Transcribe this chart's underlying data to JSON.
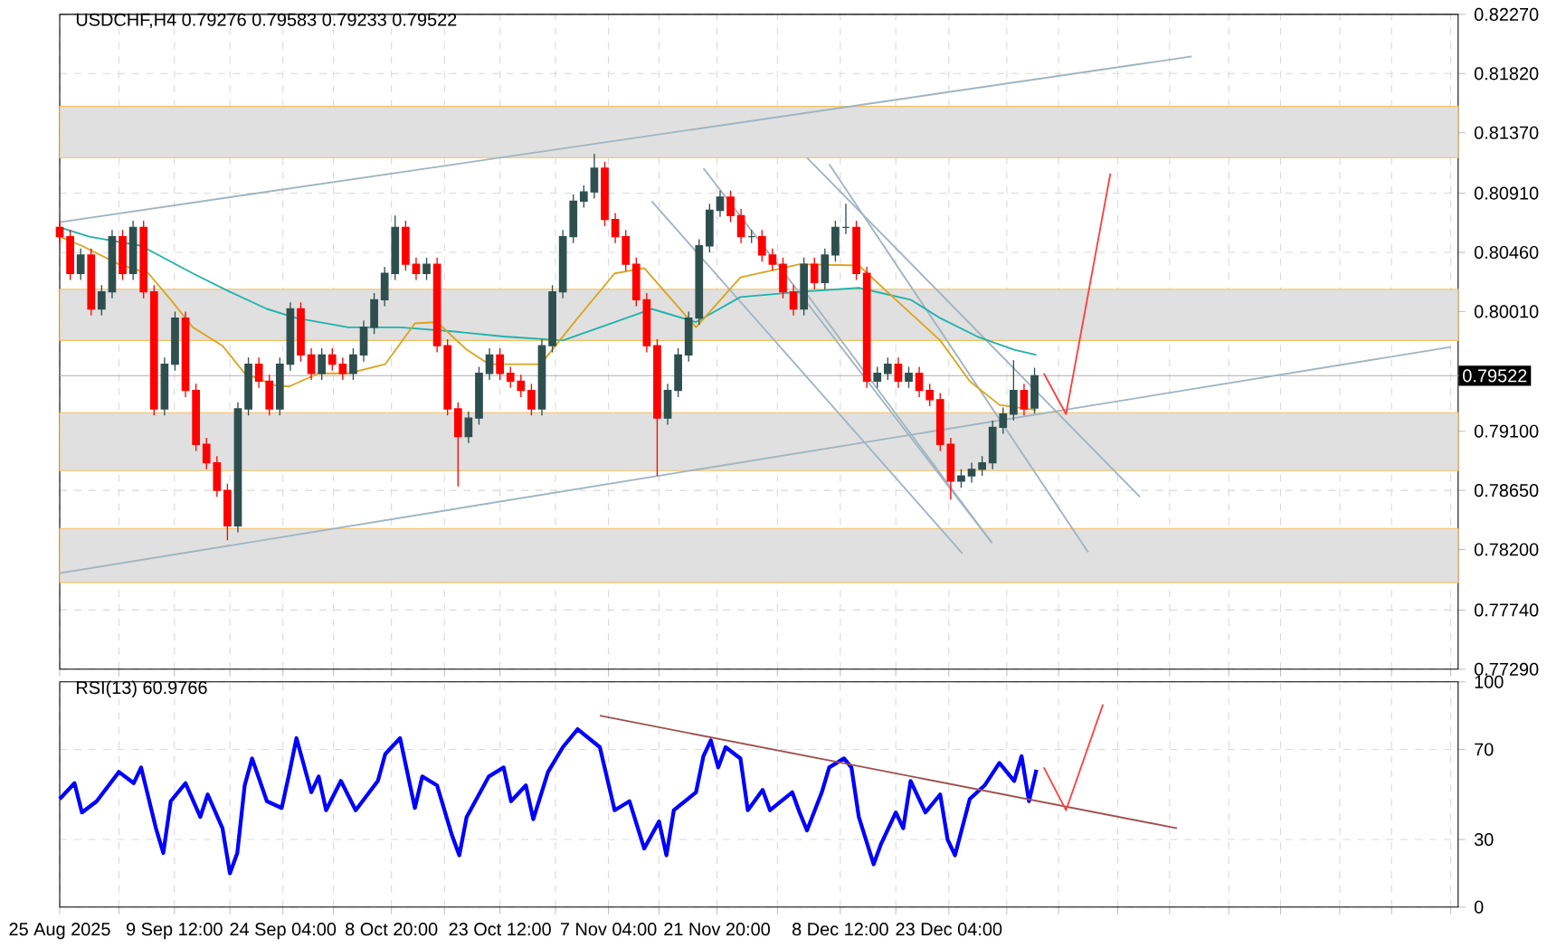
{
  "chart_data": [
    {
      "type": "candlestick",
      "title": "USDCHF,H4 0.79276 0.79583 0.79233 0.79522",
      "xlim": [
        "2025-08-25T00:00",
        "2026-03-02T00:00"
      ],
      "ylim": [
        0.7729,
        0.8227
      ],
      "xticks": [
        {
          "value": "2025-08-25T00:00",
          "label": null
        },
        {
          "value": "2025-09-02",
          "label": null
        },
        {
          "value": "2025-09-09T12:00",
          "label": null
        },
        {
          "value": "2025-09-17",
          "label": null
        },
        {
          "value": "2025-09-24T04:00",
          "label": null
        },
        {
          "value": "2025-10-01",
          "label": null
        },
        {
          "value": "2025-10-08T20:00",
          "label": null
        },
        {
          "value": "2025-10-16",
          "label": null
        },
        {
          "value": "2025-10-23T12:00",
          "label": null
        },
        {
          "value": "2025-10-31",
          "label": null
        },
        {
          "value": "2025-11-07T04:00",
          "label": null
        },
        {
          "value": "2025-11-14",
          "label": null
        },
        {
          "value": "2025-11-21T20:00",
          "label": null
        },
        {
          "value": "2025-11-30",
          "label": null
        },
        {
          "value": "2025-12-08T12:00",
          "label": null
        },
        {
          "value": "2025-12-16",
          "label": null
        },
        {
          "value": "2025-12-23T04:00",
          "label": null
        },
        {
          "value": "2025-12-31",
          "label": null
        },
        {
          "value": "2026-01-07",
          "label": null
        },
        {
          "value": "2026-01-15",
          "label": null
        },
        {
          "value": "2026-01-22",
          "label": null
        },
        {
          "value": "2026-01-30",
          "label": null
        },
        {
          "value": "2026-02-06",
          "label": null
        },
        {
          "value": "2026-02-14",
          "label": null
        },
        {
          "value": "2026-02-21",
          "label": null
        },
        {
          "value": "2026-03-01",
          "label": null
        }
      ],
      "yticks": [
        {
          "value": 0.7729,
          "label": "0.77290"
        },
        {
          "value": 0.7774,
          "label": "0.77740"
        },
        {
          "value": 0.782,
          "label": "0.78200"
        },
        {
          "value": 0.7865,
          "label": "0.78650"
        },
        {
          "value": 0.791,
          "label": "0.79100"
        },
        {
          "value": 0.8001,
          "label": "0.80010"
        },
        {
          "value": 0.8046,
          "label": "0.80460"
        },
        {
          "value": 0.8091,
          "label": "0.80910"
        },
        {
          "value": 0.8137,
          "label": "0.81370"
        },
        {
          "value": 0.8182,
          "label": "0.81820"
        },
        {
          "value": 0.8227,
          "label": "0.82270"
        }
      ],
      "grid": true,
      "tick_labels": "y",
      "bands": [
        {
          "axis": "y",
          "from": 0.8118,
          "to": 0.8157,
          "color": "#e0e0e0"
        },
        {
          "axis": "y",
          "from": 0.7979,
          "to": 0.8018,
          "color": "#e0e0e0"
        },
        {
          "axis": "y",
          "from": 0.788,
          "to": 0.7924,
          "color": "#e0e0e0"
        },
        {
          "axis": "y",
          "from": 0.7795,
          "to": 0.7836,
          "color": "#e0e0e0"
        }
      ],
      "ref_lines": [
        {
          "axis": "y",
          "value": 0.79522,
          "label": "0.79522",
          "color": "#c0c0c0"
        }
      ],
      "series": [
        {
          "type": "line",
          "color": "#a0b4c0",
          "x": [
            "2025-08-25",
            "2026-01-25"
          ],
          "values": [
            0.8069,
            0.8195
          ]
        },
        {
          "type": "line",
          "color": "#a0b4c0",
          "x": [
            "2025-08-25",
            "2026-03-01"
          ],
          "values": [
            0.7802,
            0.7974
          ]
        },
        {
          "type": "line",
          "color": "#a0b4c0",
          "x": [
            "2025-11-13",
            "2025-12-25"
          ],
          "values": [
            0.8085,
            0.7817
          ]
        },
        {
          "type": "line",
          "color": "#a0b4c0",
          "x": [
            "2025-11-20",
            "2025-12-29"
          ],
          "values": [
            0.811,
            0.7825
          ]
        },
        {
          "type": "line",
          "color": "#a0b4c0",
          "x": [
            "2025-12-04",
            "2026-01-18"
          ],
          "values": [
            0.8118,
            0.786
          ]
        },
        {
          "type": "line",
          "color": "#a0b4c0",
          "x": [
            "2025-12-07",
            "2026-01-11"
          ],
          "values": [
            0.8113,
            0.7818
          ]
        },
        {
          "type": "line",
          "color": "#a0b4c0",
          "x": [
            "2025-12-04",
            "2025-12-29"
          ],
          "values": [
            0.8014,
            0.7825
          ]
        },
        {
          "type": "line",
          "color": "#20b2aa",
          "x": [
            "2025-08-25",
            "2025-08-29",
            "2025-09-05",
            "2025-09-12",
            "2025-09-17",
            "2025-09-22",
            "2025-09-26",
            "2025-10-03",
            "2025-10-10",
            "2025-10-17",
            "2025-10-24",
            "2025-11-01",
            "2025-11-08",
            "2025-11-13",
            "2025-11-19",
            "2025-11-25",
            "2025-12-03",
            "2025-12-11",
            "2025-12-18",
            "2025-12-22",
            "2025-12-27",
            "2026-01-01",
            "2026-01-04"
          ],
          "values": [
            0.8065,
            0.8058,
            0.8051,
            0.803,
            0.8016,
            0.8003,
            0.7996,
            0.7989,
            0.7989,
            0.7986,
            0.7982,
            0.7979,
            0.7993,
            0.8003,
            0.7993,
            0.8012,
            0.8016,
            0.8019,
            0.801,
            0.7996,
            0.7982,
            0.7972,
            0.7968
          ]
        },
        {
          "type": "line",
          "color": "#daa520",
          "x": [
            "2025-08-25",
            "2025-08-28",
            "2025-09-02",
            "2025-09-06",
            "2025-09-09",
            "2025-09-12",
            "2025-09-16",
            "2025-09-19",
            "2025-09-23",
            "2025-09-25",
            "2025-09-29",
            "2025-10-03",
            "2025-10-08",
            "2025-10-12",
            "2025-10-15",
            "2025-10-19",
            "2025-10-22",
            "2025-10-26",
            "2025-10-29",
            "2025-11-03",
            "2025-11-08",
            "2025-11-12",
            "2025-11-19",
            "2025-11-25",
            "2025-12-03",
            "2025-12-11",
            "2025-12-16",
            "2025-12-22",
            "2025-12-26",
            "2025-12-30",
            "2026-01-04"
          ],
          "values": [
            0.8058,
            0.8051,
            0.8037,
            0.803,
            0.801,
            0.7989,
            0.7975,
            0.7954,
            0.7945,
            0.7944,
            0.7954,
            0.7954,
            0.7961,
            0.7992,
            0.7993,
            0.7972,
            0.7961,
            0.7961,
            0.7961,
            0.7996,
            0.803,
            0.8034,
            0.7989,
            0.8027,
            0.8037,
            0.8036,
            0.801,
            0.7979,
            0.7948,
            0.793,
            0.7926
          ]
        },
        {
          "type": "candlestick",
          "x": [
            "2025-08-25T00:00",
            "2025-08-26T10:00",
            "2025-08-27T20:00",
            "2025-08-29T06:00",
            "2025-08-30T16:00",
            "2025-09-01T02:00",
            "2025-09-02T12:00",
            "2025-09-03T22:00",
            "2025-09-05T08:00",
            "2025-09-06T18:00",
            "2025-09-08T04:00",
            "2025-09-09T14:00",
            "2025-09-11T00:00",
            "2025-09-12T10:00",
            "2025-09-13T20:00",
            "2025-09-15T06:00",
            "2025-09-16T16:00",
            "2025-09-18T02:00",
            "2025-09-19T12:00",
            "2025-09-20T22:00",
            "2025-09-22T08:00",
            "2025-09-23T18:00",
            "2025-09-25T04:00",
            "2025-09-26T14:00",
            "2025-09-28T00:00",
            "2025-09-29T10:00",
            "2025-09-30T20:00",
            "2025-10-02T06:00",
            "2025-10-03T16:00",
            "2025-10-05T02:00",
            "2025-10-06T12:00",
            "2025-10-07T22:00",
            "2025-10-09T08:00",
            "2025-10-10T18:00",
            "2025-10-12T04:00",
            "2025-10-13T14:00",
            "2025-10-15T00:00",
            "2025-10-16T10:00",
            "2025-10-17T20:00",
            "2025-10-19T06:00",
            "2025-10-20T16:00",
            "2025-10-22T02:00",
            "2025-10-23T12:00",
            "2025-10-24T22:00",
            "2025-10-26T08:00",
            "2025-10-27T18:00",
            "2025-10-29T04:00",
            "2025-10-30T14:00",
            "2025-11-01T00:00",
            "2025-11-02T10:00",
            "2025-11-03T20:00",
            "2025-11-05T06:00",
            "2025-11-06T16:00",
            "2025-11-08T02:00",
            "2025-11-09T12:00",
            "2025-11-10T22:00",
            "2025-11-12T08:00",
            "2025-11-13T18:00",
            "2025-11-15T04:00",
            "2025-11-16T14:00",
            "2025-11-18T00:00",
            "2025-11-19T10:00",
            "2025-11-20T20:00",
            "2025-11-22T06:00",
            "2025-11-23T16:00",
            "2025-11-25T02:00",
            "2025-11-26T12:00",
            "2025-11-27T22:00",
            "2025-11-29T08:00",
            "2025-11-30T18:00",
            "2025-12-02T04:00",
            "2025-12-03T14:00",
            "2025-12-05T00:00",
            "2025-12-06T10:00",
            "2025-12-07T20:00",
            "2025-12-09T06:00",
            "2025-12-10T16:00",
            "2025-12-12T02:00",
            "2025-12-13T12:00",
            "2025-12-14T22:00",
            "2025-12-16T08:00",
            "2025-12-17T18:00",
            "2025-12-19T04:00",
            "2025-12-20T14:00",
            "2025-12-22T00:00",
            "2025-12-23T10:00",
            "2025-12-24T20:00",
            "2025-12-26T06:00",
            "2025-12-27T16:00",
            "2025-12-29T02:00",
            "2025-12-30T12:00",
            "2025-12-31T22:00",
            "2026-01-02T08:00",
            "2026-01-03T18:00"
          ],
          "ohlc": [
            [
              0.8065,
              0.807,
              0.8053,
              0.8058
            ],
            [
              0.8058,
              0.8063,
              0.8025,
              0.803
            ],
            [
              0.803,
              0.8049,
              0.8025,
              0.8044
            ],
            [
              0.8044,
              0.8049,
              0.7998,
              0.8003
            ],
            [
              0.8003,
              0.8021,
              0.7998,
              0.8016
            ],
            [
              0.8016,
              0.8063,
              0.8011,
              0.8058
            ],
            [
              0.8058,
              0.8063,
              0.8025,
              0.803
            ],
            [
              0.803,
              0.807,
              0.8025,
              0.8065
            ],
            [
              0.8065,
              0.807,
              0.8011,
              0.8016
            ],
            [
              0.8016,
              0.8021,
              0.7922,
              0.7927
            ],
            [
              0.7927,
              0.7966,
              0.7922,
              0.7961
            ],
            [
              0.7961,
              0.8001,
              0.7956,
              0.7996
            ],
            [
              0.7996,
              0.8001,
              0.7936,
              0.7941
            ],
            [
              0.7941,
              0.7946,
              0.7895,
              0.79
            ],
            [
              0.79,
              0.7905,
              0.7881,
              0.7886
            ],
            [
              0.7886,
              0.7891,
              0.786,
              0.7865
            ],
            [
              0.7865,
              0.787,
              0.7827,
              0.7838
            ],
            [
              0.7838,
              0.7932,
              0.7833,
              0.7927
            ],
            [
              0.7927,
              0.7966,
              0.7922,
              0.7961
            ],
            [
              0.7961,
              0.7966,
              0.7943,
              0.7948
            ],
            [
              0.7948,
              0.7953,
              0.7922,
              0.7927
            ],
            [
              0.7927,
              0.7966,
              0.7922,
              0.7961
            ],
            [
              0.7961,
              0.8008,
              0.7956,
              0.8003
            ],
            [
              0.8003,
              0.8008,
              0.7963,
              0.7968
            ],
            [
              0.7968,
              0.7973,
              0.7949,
              0.7954
            ],
            [
              0.7954,
              0.7973,
              0.7949,
              0.7968
            ],
            [
              0.7968,
              0.7973,
              0.7956,
              0.7961
            ],
            [
              0.7961,
              0.7966,
              0.7949,
              0.7954
            ],
            [
              0.7954,
              0.7973,
              0.7949,
              0.7968
            ],
            [
              0.7968,
              0.7994,
              0.7963,
              0.7989
            ],
            [
              0.7989,
              0.8015,
              0.7984,
              0.801
            ],
            [
              0.801,
              0.8035,
              0.8005,
              0.803
            ],
            [
              0.803,
              0.8074,
              0.8025,
              0.8065
            ],
            [
              0.8065,
              0.807,
              0.8032,
              0.8037
            ],
            [
              0.8037,
              0.8042,
              0.8025,
              0.803
            ],
            [
              0.803,
              0.8042,
              0.8025,
              0.8037
            ],
            [
              0.8037,
              0.8042,
              0.797,
              0.7975
            ],
            [
              0.7975,
              0.798,
              0.7922,
              0.7927
            ],
            [
              0.7927,
              0.7932,
              0.7868,
              0.7906
            ],
            [
              0.7906,
              0.7925,
              0.7901,
              0.792
            ],
            [
              0.792,
              0.7959,
              0.7915,
              0.7954
            ],
            [
              0.7954,
              0.7973,
              0.7949,
              0.7968
            ],
            [
              0.7968,
              0.7973,
              0.7949,
              0.7954
            ],
            [
              0.7954,
              0.7959,
              0.7943,
              0.7948
            ],
            [
              0.7948,
              0.7953,
              0.7936,
              0.7941
            ],
            [
              0.7941,
              0.7946,
              0.7922,
              0.7927
            ],
            [
              0.7927,
              0.798,
              0.7922,
              0.7975
            ],
            [
              0.7975,
              0.8021,
              0.797,
              0.8016
            ],
            [
              0.8016,
              0.8063,
              0.8011,
              0.8058
            ],
            [
              0.8058,
              0.809,
              0.8053,
              0.8085
            ],
            [
              0.8085,
              0.8097,
              0.808,
              0.8092
            ],
            [
              0.8092,
              0.8121,
              0.8087,
              0.811
            ],
            [
              0.811,
              0.8115,
              0.8066,
              0.8071
            ],
            [
              0.8071,
              0.8076,
              0.8053,
              0.8058
            ],
            [
              0.8058,
              0.8063,
              0.8032,
              0.8037
            ],
            [
              0.8037,
              0.8042,
              0.8005,
              0.801
            ],
            [
              0.801,
              0.8015,
              0.797,
              0.7975
            ],
            [
              0.7975,
              0.798,
              0.7876,
              0.792
            ],
            [
              0.792,
              0.7946,
              0.7915,
              0.7941
            ],
            [
              0.7941,
              0.7973,
              0.7936,
              0.7968
            ],
            [
              0.7968,
              0.8001,
              0.7963,
              0.7996
            ],
            [
              0.7996,
              0.8056,
              0.7991,
              0.8051
            ],
            [
              0.8051,
              0.8083,
              0.8046,
              0.8078
            ],
            [
              0.8078,
              0.8093,
              0.8073,
              0.8088
            ],
            [
              0.8088,
              0.8093,
              0.8069,
              0.8074
            ],
            [
              0.8074,
              0.8079,
              0.8053,
              0.8058
            ],
            [
              0.8058,
              0.8063,
              0.8053,
              0.8058
            ],
            [
              0.8058,
              0.8063,
              0.8039,
              0.8044
            ],
            [
              0.8044,
              0.8049,
              0.8032,
              0.8037
            ],
            [
              0.8037,
              0.8042,
              0.8011,
              0.8016
            ],
            [
              0.8016,
              0.8021,
              0.7998,
              0.8003
            ],
            [
              0.8003,
              0.8042,
              0.7998,
              0.8037
            ],
            [
              0.8037,
              0.8042,
              0.8018,
              0.8023
            ],
            [
              0.8023,
              0.8049,
              0.8018,
              0.8044
            ],
            [
              0.8044,
              0.807,
              0.8039,
              0.8065
            ],
            [
              0.8065,
              0.8083,
              0.806,
              0.8065
            ],
            [
              0.8065,
              0.807,
              0.8025,
              0.803
            ],
            [
              0.803,
              0.8035,
              0.7943,
              0.7948
            ],
            [
              0.7948,
              0.7959,
              0.7943,
              0.7954
            ],
            [
              0.7954,
              0.7966,
              0.7949,
              0.7961
            ],
            [
              0.7961,
              0.7966,
              0.7943,
              0.7948
            ],
            [
              0.7948,
              0.7959,
              0.7943,
              0.7954
            ],
            [
              0.7954,
              0.7959,
              0.7936,
              0.7941
            ],
            [
              0.7941,
              0.7946,
              0.7929,
              0.7934
            ],
            [
              0.7934,
              0.7939,
              0.7895,
              0.79
            ],
            [
              0.79,
              0.7905,
              0.7858,
              0.7872
            ],
            [
              0.7872,
              0.7881,
              0.7867,
              0.7876
            ],
            [
              0.7876,
              0.7886,
              0.7871,
              0.7881
            ],
            [
              0.7881,
              0.7891,
              0.7876,
              0.7886
            ],
            [
              0.7886,
              0.7918,
              0.7881,
              0.7913
            ],
            [
              0.7913,
              0.7928,
              0.7908,
              0.7923
            ],
            [
              0.7923,
              0.7964,
              0.7918,
              0.7941
            ],
            [
              0.7941,
              0.7946,
              0.7922,
              0.7927
            ],
            [
              0.79276,
              0.79583,
              0.79233,
              0.79522
            ]
          ]
        },
        {
          "type": "line",
          "color": "#ff4040",
          "x": [
            "2026-01-05",
            "2026-01-08",
            "2026-01-14"
          ],
          "values": [
            0.7954,
            0.7923,
            0.8106
          ]
        }
      ]
    },
    {
      "type": "line",
      "title": "RSI(13) 60.9766",
      "xlim": [
        "2025-08-25T00:00",
        "2026-03-02T00:00"
      ],
      "ylim": [
        0,
        100
      ],
      "xticks": [
        {
          "value": "2025-08-25T00:00",
          "label": "25 Aug 2025"
        },
        {
          "value": "2025-09-02",
          "label": null
        },
        {
          "value": "2025-09-09T12:00",
          "label": "9 Sep 12:00"
        },
        {
          "value": "2025-09-17",
          "label": null
        },
        {
          "value": "2025-09-24T04:00",
          "label": "24 Sep 04:00"
        },
        {
          "value": "2025-10-01",
          "label": null
        },
        {
          "value": "2025-10-08T20:00",
          "label": "8 Oct 20:00"
        },
        {
          "value": "2025-10-16",
          "label": null
        },
        {
          "value": "2025-10-23T12:00",
          "label": "23 Oct 12:00"
        },
        {
          "value": "2025-10-31",
          "label": null
        },
        {
          "value": "2025-11-07T04:00",
          "label": "7 Nov 04:00"
        },
        {
          "value": "2025-11-14",
          "label": null
        },
        {
          "value": "2025-11-21T20:00",
          "label": "21 Nov 20:00"
        },
        {
          "value": "2025-11-30",
          "label": null
        },
        {
          "value": "2025-12-08T12:00",
          "label": "8 Dec 12:00"
        },
        {
          "value": "2025-12-16",
          "label": null
        },
        {
          "value": "2025-12-23T04:00",
          "label": "23 Dec 04:00"
        },
        {
          "value": "2025-12-31",
          "label": null
        },
        {
          "value": "2026-01-07",
          "label": null
        },
        {
          "value": "2026-01-15",
          "label": null
        },
        {
          "value": "2026-01-22",
          "label": null
        },
        {
          "value": "2026-01-30",
          "label": null
        },
        {
          "value": "2026-02-06",
          "label": null
        },
        {
          "value": "2026-02-14",
          "label": null
        },
        {
          "value": "2026-02-21",
          "label": null
        },
        {
          "value": "2026-03-01",
          "label": null
        }
      ],
      "yticks": [
        0,
        30,
        70,
        100
      ],
      "grid": true,
      "series": [
        {
          "color": "#0000ff",
          "x": [
            "2025-08-25",
            "2025-08-27",
            "2025-08-28",
            "2025-08-30",
            "2025-09-02",
            "2025-09-04",
            "2025-09-05",
            "2025-09-07",
            "2025-09-08",
            "2025-09-09",
            "2025-09-11",
            "2025-09-13",
            "2025-09-14",
            "2025-09-16",
            "2025-09-17",
            "2025-09-18",
            "2025-09-19",
            "2025-09-20",
            "2025-09-22",
            "2025-09-24",
            "2025-09-25",
            "2025-09-26",
            "2025-09-28",
            "2025-09-29",
            "2025-09-30",
            "2025-10-02",
            "2025-10-04",
            "2025-10-07",
            "2025-10-08",
            "2025-10-10",
            "2025-10-12",
            "2025-10-13",
            "2025-10-15",
            "2025-10-17",
            "2025-10-18",
            "2025-10-19",
            "2025-10-22",
            "2025-10-24",
            "2025-10-25",
            "2025-10-27",
            "2025-10-28",
            "2025-10-30",
            "2025-11-01",
            "2025-11-03",
            "2025-11-06",
            "2025-11-08",
            "2025-11-10",
            "2025-11-12",
            "2025-11-14",
            "2025-11-15",
            "2025-11-16",
            "2025-11-19",
            "2025-11-20",
            "2025-11-21",
            "2025-11-22",
            "2025-11-23",
            "2025-11-25",
            "2025-11-26",
            "2025-11-28",
            "2025-11-29",
            "2025-12-02",
            "2025-12-03",
            "2025-12-04",
            "2025-12-06",
            "2025-12-07",
            "2025-12-09",
            "2025-12-10",
            "2025-12-11",
            "2025-12-13",
            "2025-12-14",
            "2025-12-16",
            "2025-12-17",
            "2025-12-18",
            "2025-12-20",
            "2025-12-22",
            "2025-12-23",
            "2025-12-24",
            "2025-12-26",
            "2025-12-28",
            "2025-12-30",
            "2026-01-01",
            "2026-01-02",
            "2026-01-03",
            "2026-01-04"
          ],
          "values": [
            48,
            55,
            42,
            47,
            60,
            55,
            62,
            35,
            24,
            47,
            55,
            40,
            50,
            35,
            15,
            24,
            54,
            66,
            47,
            44,
            59,
            75,
            51,
            58,
            43,
            56,
            43,
            56,
            68,
            75,
            44,
            58,
            54,
            32,
            23,
            40,
            58,
            62,
            47,
            54,
            39,
            60,
            71,
            79,
            71,
            43,
            47,
            26,
            38,
            23,
            43,
            51,
            67,
            74,
            62,
            71,
            66,
            43,
            52,
            43,
            51,
            42,
            34,
            51,
            62,
            66,
            62,
            40,
            19,
            28,
            42,
            35,
            56,
            42,
            50,
            30,
            23,
            48,
            54,
            64,
            56,
            67,
            47,
            61
          ]
        },
        {
          "color": "#a05050",
          "x": [
            "2025-11-06",
            "2026-01-23"
          ],
          "values": [
            85,
            35
          ]
        },
        {
          "color": "#ff4040",
          "x": [
            "2026-01-05",
            "2026-01-08",
            "2026-01-13"
          ],
          "values": [
            62,
            43,
            90
          ]
        }
      ]
    }
  ]
}
